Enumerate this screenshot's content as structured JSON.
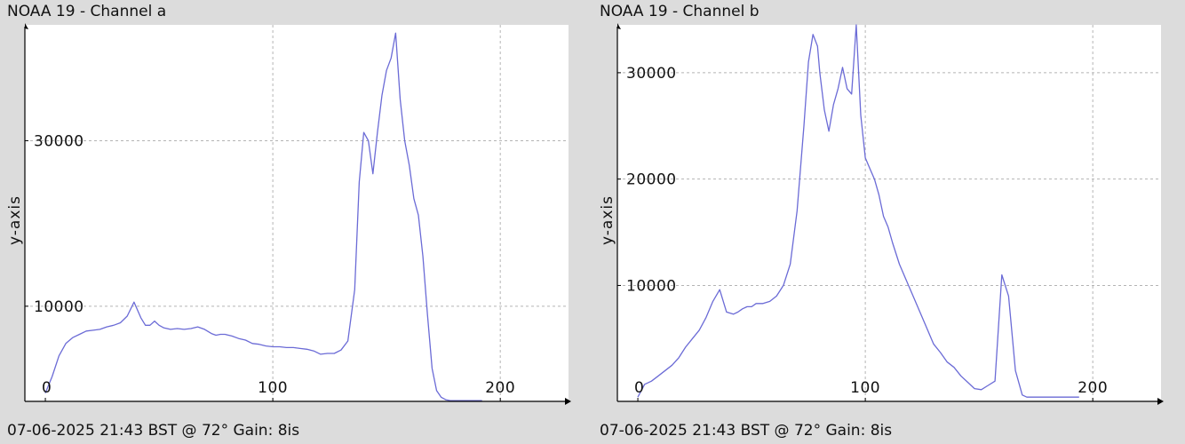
{
  "colors": {
    "background": "#dcdcdc",
    "plot_area": "#ffffff",
    "series": "#6b6bd6",
    "grid": "#b4b4b4",
    "axis": "#000000"
  },
  "chart_data": [
    {
      "type": "line",
      "title": "NOAA 19 - Channel a",
      "footer": "07-06-2025 21:43 BST @ 72° Gain: 8is",
      "ylabel": "y-axis",
      "xlabel": "",
      "xlim": [
        -9,
        230
      ],
      "ylim": [
        -1500,
        44000
      ],
      "grid": true,
      "x_ticks": [
        0,
        100,
        200
      ],
      "y_ticks": [
        10000,
        30000
      ],
      "series": [
        {
          "x": [
            0,
            3,
            6,
            9,
            12,
            15,
            18,
            21,
            24,
            27,
            30,
            33,
            36,
            39,
            42,
            44,
            46,
            48,
            50,
            52,
            55,
            58,
            61,
            64,
            67,
            70,
            73,
            75,
            77,
            79,
            82,
            85,
            88,
            91,
            94,
            97,
            100,
            103,
            106,
            109,
            112,
            115,
            118,
            121,
            124,
            127,
            130,
            133,
            136,
            138,
            140,
            142,
            144,
            146,
            148,
            150,
            152,
            154,
            156,
            158,
            160,
            162,
            164,
            166,
            168,
            170,
            172,
            174,
            176,
            178,
            180,
            182,
            184,
            186,
            188,
            190,
            192
          ],
          "y": [
            -500,
            1500,
            4000,
            5500,
            6200,
            6600,
            7000,
            7100,
            7200,
            7500,
            7700,
            8000,
            8800,
            10500,
            8600,
            7700,
            7700,
            8200,
            7700,
            7400,
            7200,
            7300,
            7200,
            7300,
            7500,
            7200,
            6700,
            6500,
            6600,
            6600,
            6400,
            6100,
            5900,
            5500,
            5400,
            5200,
            5100,
            5100,
            5000,
            5000,
            4900,
            4800,
            4600,
            4200,
            4300,
            4300,
            4700,
            5800,
            12000,
            25000,
            31000,
            30000,
            26000,
            31000,
            35500,
            38500,
            40000,
            43000,
            35000,
            30000,
            27000,
            23000,
            21000,
            16000,
            9000,
            2500,
            -200,
            -1000,
            -1300,
            -1400,
            -1400,
            -1400,
            -1400,
            -1400,
            -1400,
            -1400,
            -1400
          ]
        }
      ]
    },
    {
      "type": "line",
      "title": "NOAA 19 - Channel b",
      "footer": "07-06-2025 21:43 BST @ 72° Gain: 8is",
      "ylabel": "y-axis",
      "xlabel": "",
      "xlim": [
        -9,
        230
      ],
      "ylim": [
        -900,
        34500
      ],
      "grid": true,
      "x_ticks": [
        0,
        100,
        200
      ],
      "y_ticks": [
        10000,
        20000,
        30000
      ],
      "series": [
        {
          "x": [
            0,
            3,
            6,
            9,
            12,
            15,
            18,
            21,
            24,
            27,
            30,
            33,
            36,
            39,
            42,
            44,
            46,
            48,
            50,
            52,
            55,
            58,
            61,
            64,
            67,
            70,
            73,
            75,
            77,
            79,
            80,
            82,
            84,
            86,
            88,
            90,
            92,
            94,
            96,
            98,
            100,
            102,
            104,
            106,
            108,
            110,
            112,
            115,
            118,
            121,
            124,
            127,
            130,
            133,
            136,
            139,
            142,
            145,
            148,
            151,
            154,
            157,
            160,
            163,
            166,
            169,
            171,
            172,
            174,
            176,
            178,
            180,
            182,
            185,
            188,
            191,
            194
          ],
          "y": [
            -500,
            700,
            1000,
            1500,
            2000,
            2500,
            3200,
            4200,
            5000,
            5800,
            7000,
            8500,
            9600,
            7500,
            7300,
            7500,
            7800,
            8000,
            8000,
            8300,
            8300,
            8500,
            9000,
            10000,
            12000,
            17000,
            25000,
            31000,
            33600,
            32500,
            30000,
            26500,
            24500,
            27000,
            28500,
            30500,
            28500,
            28000,
            34500,
            26000,
            22000,
            21000,
            20000,
            18500,
            16500,
            15500,
            14000,
            12000,
            10500,
            9000,
            7500,
            6000,
            4500,
            3700,
            2800,
            2300,
            1500,
            900,
            300,
            200,
            600,
            1000,
            11000,
            9000,
            2000,
            -300,
            -500,
            -500,
            -500,
            -500,
            -500,
            -500,
            -500,
            -500,
            -500,
            -500,
            -500
          ]
        }
      ]
    }
  ]
}
